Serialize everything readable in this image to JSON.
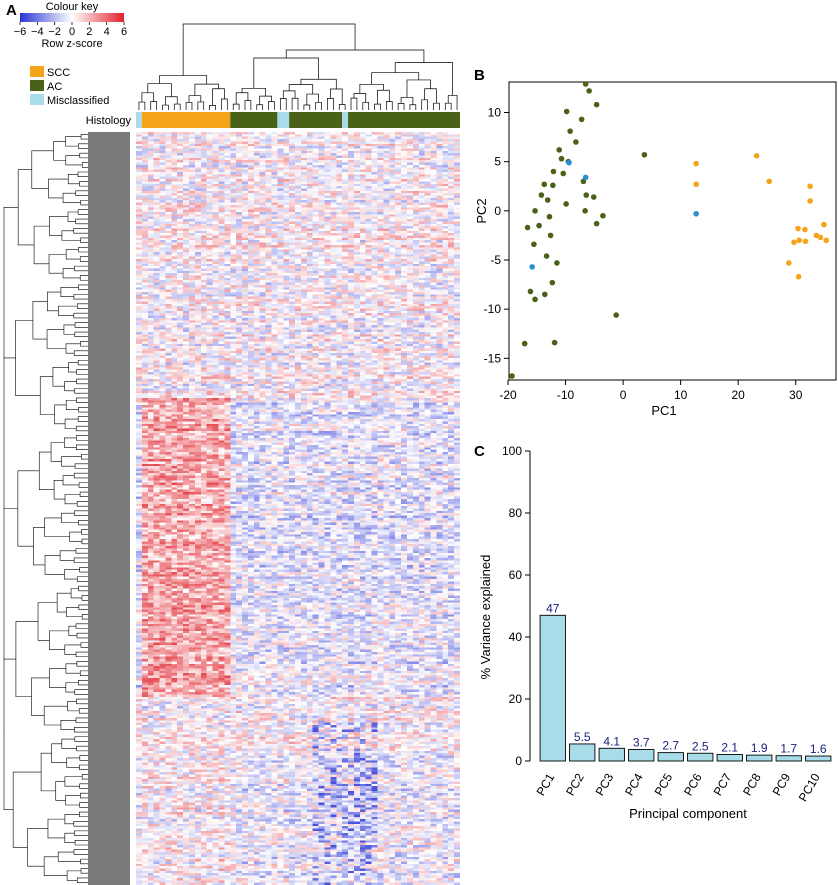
{
  "colors": {
    "scc": "#f5a31a",
    "ac": "#4a6118",
    "misclassified": "#a8dce8",
    "scatter_misclassified": "#2a8fd8",
    "bar_fill": "#a8dce8",
    "bar_label": "#1a237e",
    "heat_low": "#2b35d6",
    "heat_mid": "#ffffff",
    "heat_high": "#e0202a",
    "dendro_band": "#7a7a7a"
  },
  "panel_a": {
    "letter": "A",
    "colour_key_title": "Colour key",
    "colour_key_ticks": [
      "−6",
      "−4",
      "−2",
      "0",
      "2",
      "4",
      "6"
    ],
    "colour_key_sublabel": "Row z-score",
    "legend": [
      {
        "key": "scc",
        "label": "SCC"
      },
      {
        "key": "ac",
        "label": "AC"
      },
      {
        "key": "misclassified",
        "label": "Misclassified"
      }
    ],
    "histology_label": "Histology",
    "histology_segments": [
      {
        "group": "misclassified",
        "from": 0,
        "to": 1
      },
      {
        "group": "scc",
        "from": 1,
        "to": 16
      },
      {
        "group": "ac",
        "from": 16,
        "to": 24
      },
      {
        "group": "misclassified",
        "from": 24,
        "to": 26
      },
      {
        "group": "ac",
        "from": 26,
        "to": 35
      },
      {
        "group": "misclassified",
        "from": 35,
        "to": 36
      },
      {
        "group": "ac",
        "from": 36,
        "to": 55
      }
    ],
    "n_samples": 55,
    "n_genes": 320
  },
  "chart_data": [
    {
      "type": "scatter",
      "panel": "B",
      "xlabel": "PC1",
      "ylabel": "PC2",
      "xlim": [
        -20,
        37
      ],
      "ylim": [
        -17,
        13
      ],
      "xticks": [
        -20,
        -10,
        0,
        10,
        20,
        30
      ],
      "yticks": [
        -15,
        -10,
        -5,
        0,
        5,
        10
      ],
      "series": [
        {
          "name": "AC",
          "color_key": "ac",
          "points": [
            [
              -6.5,
              12.9
            ],
            [
              -5.9,
              12.2
            ],
            [
              -4.6,
              10.8
            ],
            [
              -9.8,
              10.1
            ],
            [
              -7.2,
              9.3
            ],
            [
              -9.2,
              8.1
            ],
            [
              -11.1,
              6.2
            ],
            [
              -8.2,
              7.0
            ],
            [
              -10.7,
              5.3
            ],
            [
              -9.5,
              5.0
            ],
            [
              -12.1,
              4.0
            ],
            [
              -10.4,
              3.8
            ],
            [
              -6.9,
              3.0
            ],
            [
              -13.7,
              2.7
            ],
            [
              -12.2,
              2.6
            ],
            [
              -14.2,
              1.6
            ],
            [
              -6.4,
              1.6
            ],
            [
              -13.1,
              1.1
            ],
            [
              -5.1,
              1.4
            ],
            [
              -9.9,
              0.7
            ],
            [
              -15.3,
              0.0
            ],
            [
              -6.6,
              0.0
            ],
            [
              -3.5,
              -0.5
            ],
            [
              -12.8,
              -0.6
            ],
            [
              -4.6,
              -1.3
            ],
            [
              -16.6,
              -1.7
            ],
            [
              -14.6,
              -1.5
            ],
            [
              -12.6,
              -2.5
            ],
            [
              -15.5,
              -3.4
            ],
            [
              -13.3,
              -4.6
            ],
            [
              -11.5,
              -5.3
            ],
            [
              -12.3,
              -7.3
            ],
            [
              -16.1,
              -8.2
            ],
            [
              -13.6,
              -8.5
            ],
            [
              -15.3,
              -9.0
            ],
            [
              -1.2,
              -10.6
            ],
            [
              -17.1,
              -13.5
            ],
            [
              -11.9,
              -13.4
            ],
            [
              -19.3,
              -16.8
            ],
            [
              3.7,
              5.7
            ]
          ]
        },
        {
          "name": "SCC",
          "color_key": "scc",
          "points": [
            [
              12.7,
              4.8
            ],
            [
              12.7,
              2.7
            ],
            [
              23.2,
              5.6
            ],
            [
              25.4,
              3.0
            ],
            [
              32.5,
              2.5
            ],
            [
              32.5,
              1.0
            ],
            [
              34.9,
              -1.4
            ],
            [
              30.4,
              -1.8
            ],
            [
              31.6,
              -1.9
            ],
            [
              33.6,
              -2.5
            ],
            [
              34.3,
              -2.7
            ],
            [
              35.3,
              -3.0
            ],
            [
              30.6,
              -3.0
            ],
            [
              31.7,
              -3.1
            ],
            [
              29.7,
              -3.2
            ],
            [
              28.8,
              -5.3
            ],
            [
              30.5,
              -6.7
            ]
          ]
        },
        {
          "name": "Misclassified",
          "color_key": "scatter_misclassified",
          "points": [
            [
              -9.4,
              4.9
            ],
            [
              -6.5,
              3.4
            ],
            [
              12.7,
              -0.3
            ],
            [
              -15.8,
              -5.7
            ]
          ]
        }
      ]
    },
    {
      "type": "bar",
      "panel": "C",
      "xlabel": "Principal component",
      "ylabel": "% Variance explained",
      "ylim": [
        0,
        100
      ],
      "yticks": [
        0,
        20,
        40,
        60,
        80,
        100
      ],
      "categories": [
        "PC1",
        "PC2",
        "PC3",
        "PC4",
        "PC5",
        "PC6",
        "PC7",
        "PC8",
        "PC9",
        "PC10"
      ],
      "values": [
        47,
        5.5,
        4.1,
        3.7,
        2.7,
        2.5,
        2.1,
        1.9,
        1.7,
        1.6
      ],
      "value_labels": [
        "47",
        "5.5",
        "4.1",
        "3.7",
        "2.7",
        "2.5",
        "2.1",
        "1.9",
        "1.7",
        "1.6"
      ]
    }
  ],
  "panel_letters": {
    "b": "B",
    "c": "C"
  }
}
